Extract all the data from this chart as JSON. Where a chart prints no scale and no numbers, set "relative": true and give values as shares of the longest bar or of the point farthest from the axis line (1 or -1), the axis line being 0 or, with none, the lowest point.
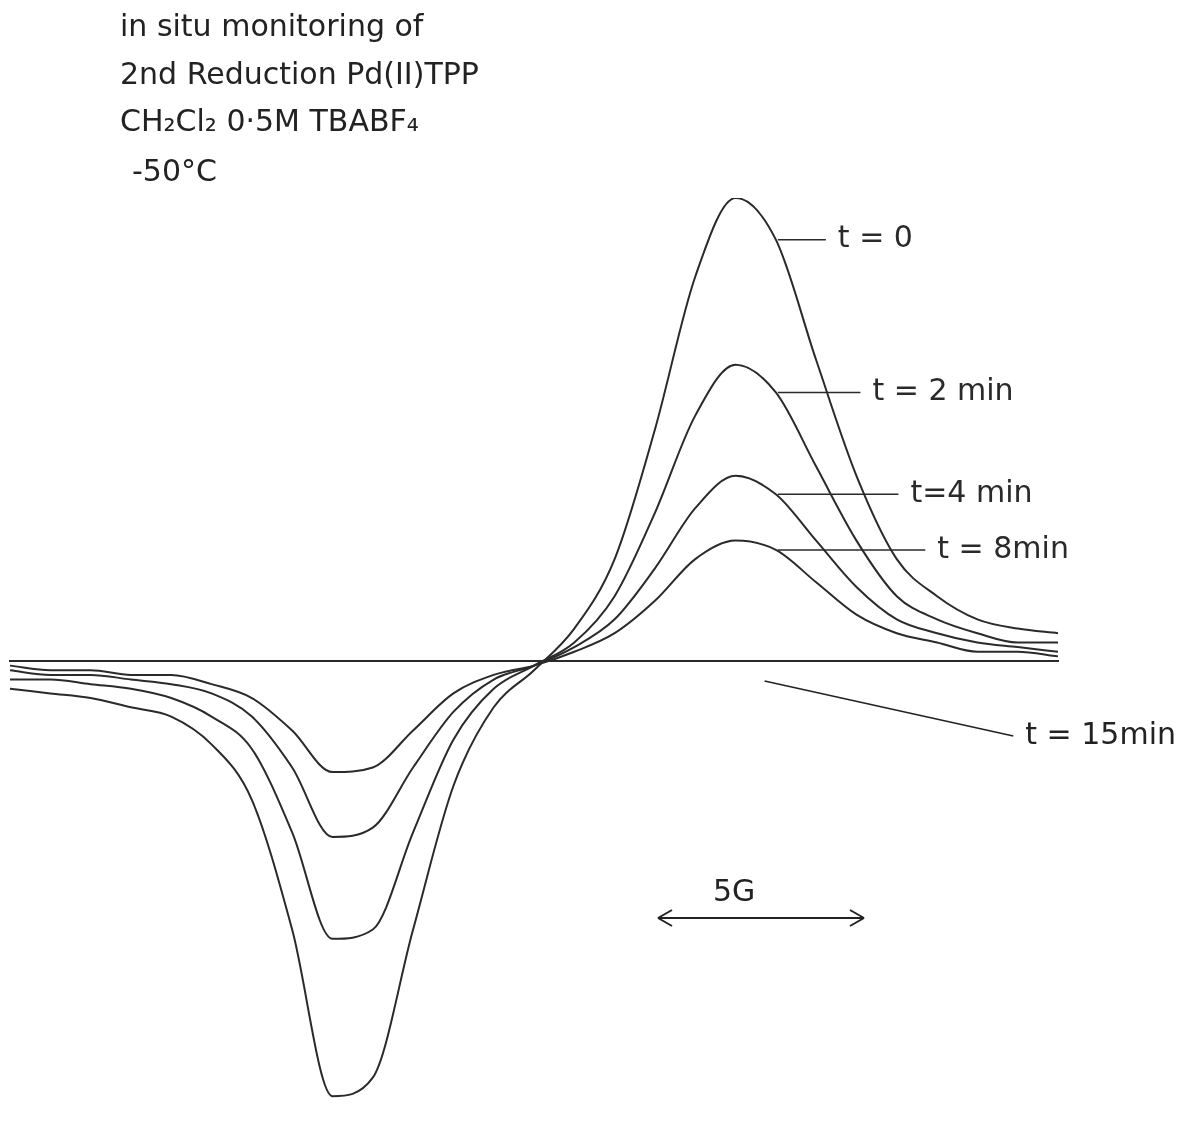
{
  "chart_data": {
    "type": "line",
    "title": "in situ monitoring of",
    "subtitle": "2nd Reduction Pd(II)TPP",
    "relative": true,
    "legend": "right",
    "marker": "none",
    "line_style": "solid",
    "annotations": [
      "CH₂Cl₂  0·5M TBABF₄",
      "-50°C",
      "5G",
      "t = 15min"
    ],
    "categories": [
      null,
      null,
      null,
      null,
      null,
      null,
      null,
      null,
      null,
      null,
      null,
      null,
      null,
      null,
      null,
      null,
      null,
      null,
      null,
      null,
      null,
      null,
      null,
      null,
      null,
      null,
      null
    ],
    "series": [
      {
        "name": "t = 0",
        "color": "#2a2a2a",
        "values": [
          -0.06,
          -0.07,
          -0.08,
          -0.1,
          -0.12,
          -0.18,
          -0.3,
          -0.58,
          -0.94,
          -0.9,
          -0.58,
          -0.27,
          -0.1,
          -0.02,
          0.07,
          0.22,
          0.5,
          0.83,
          1.0,
          0.91,
          0.65,
          0.4,
          0.22,
          0.14,
          0.09,
          0.07,
          0.06
        ]
      },
      {
        "name": "t = 2 min",
        "color": "#2a2a2a",
        "values": [
          -0.04,
          -0.04,
          -0.05,
          -0.06,
          -0.08,
          -0.12,
          -0.19,
          -0.37,
          -0.6,
          -0.58,
          -0.37,
          -0.17,
          -0.06,
          -0.01,
          0.04,
          0.14,
          0.32,
          0.53,
          0.64,
          0.58,
          0.42,
          0.26,
          0.14,
          0.09,
          0.06,
          0.04,
          0.04
        ]
      },
      {
        "name": "t=4 min",
        "color": "#2a2a2a",
        "values": [
          -0.02,
          -0.03,
          -0.03,
          -0.04,
          -0.05,
          -0.07,
          -0.12,
          -0.23,
          -0.38,
          -0.36,
          -0.23,
          -0.11,
          -0.04,
          -0.01,
          0.03,
          0.09,
          0.2,
          0.33,
          0.4,
          0.36,
          0.26,
          0.16,
          0.09,
          0.06,
          0.04,
          0.03,
          0.02
        ]
      },
      {
        "name": "t = 8min",
        "color": "#2a2a2a",
        "values": [
          -0.01,
          -0.02,
          -0.02,
          -0.03,
          -0.03,
          -0.05,
          -0.08,
          -0.15,
          -0.24,
          -0.23,
          -0.15,
          -0.07,
          -0.03,
          -0.01,
          0.02,
          0.06,
          0.13,
          0.22,
          0.26,
          0.24,
          0.17,
          0.1,
          0.06,
          0.04,
          0.02,
          0.02,
          0.01
        ]
      }
    ]
  }
}
